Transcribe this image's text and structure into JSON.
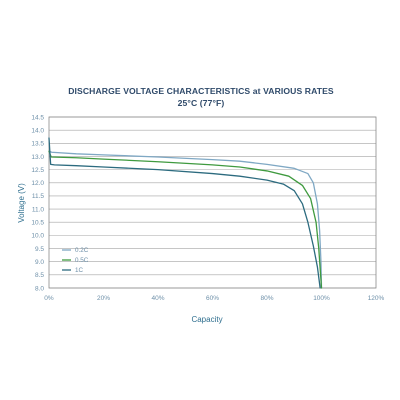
{
  "chart_data": {
    "type": "line",
    "title": "DISCHARGE VOLTAGE CHARACTERISTICS at VARIOUS RATES",
    "subtitle": "25°C (77°F)",
    "xlabel": "Capacity",
    "ylabel": "Voltage (V)",
    "xlim": [
      0,
      120
    ],
    "ylim": [
      8.0,
      14.5
    ],
    "x_ticks": [
      "0%",
      "20%",
      "40%",
      "60%",
      "80%",
      "100%",
      "120%"
    ],
    "y_ticks": [
      "14.5",
      "14.0",
      "13.5",
      "13.0",
      "12.5",
      "12.0",
      "11.5",
      "11.0",
      "10.5",
      "10.0",
      "9.5",
      "9.0",
      "8.5",
      "8.0"
    ],
    "grid": true,
    "legend_position": "lower-left",
    "series": [
      {
        "name": "0.2C",
        "color": "#7fa8c4",
        "points": [
          [
            0,
            13.2
          ],
          [
            1,
            13.16
          ],
          [
            10,
            13.1
          ],
          [
            20,
            13.06
          ],
          [
            40,
            12.98
          ],
          [
            60,
            12.88
          ],
          [
            70,
            12.82
          ],
          [
            80,
            12.7
          ],
          [
            90,
            12.55
          ],
          [
            95,
            12.35
          ],
          [
            97,
            12.0
          ],
          [
            98.5,
            11.2
          ],
          [
            99.3,
            10.2
          ],
          [
            99.8,
            9.0
          ],
          [
            100,
            8.0
          ]
        ]
      },
      {
        "name": "0.5C",
        "color": "#3f9a3f",
        "points": [
          [
            0,
            13.2
          ],
          [
            0.8,
            12.98
          ],
          [
            10,
            12.95
          ],
          [
            20,
            12.9
          ],
          [
            40,
            12.8
          ],
          [
            60,
            12.68
          ],
          [
            70,
            12.6
          ],
          [
            80,
            12.45
          ],
          [
            88,
            12.25
          ],
          [
            93,
            11.9
          ],
          [
            96,
            11.4
          ],
          [
            98,
            10.5
          ],
          [
            99,
            9.5
          ],
          [
            99.6,
            8.6
          ],
          [
            100,
            8.0
          ]
        ]
      },
      {
        "name": "1C",
        "color": "#2c6b7f",
        "points": [
          [
            0,
            13.7
          ],
          [
            0.6,
            12.7
          ],
          [
            2,
            12.68
          ],
          [
            10,
            12.65
          ],
          [
            20,
            12.6
          ],
          [
            40,
            12.5
          ],
          [
            60,
            12.35
          ],
          [
            70,
            12.25
          ],
          [
            80,
            12.1
          ],
          [
            86,
            11.95
          ],
          [
            90,
            11.7
          ],
          [
            93,
            11.2
          ],
          [
            95,
            10.5
          ],
          [
            97,
            9.6
          ],
          [
            98.5,
            8.8
          ],
          [
            99.5,
            8.0
          ]
        ]
      }
    ]
  }
}
